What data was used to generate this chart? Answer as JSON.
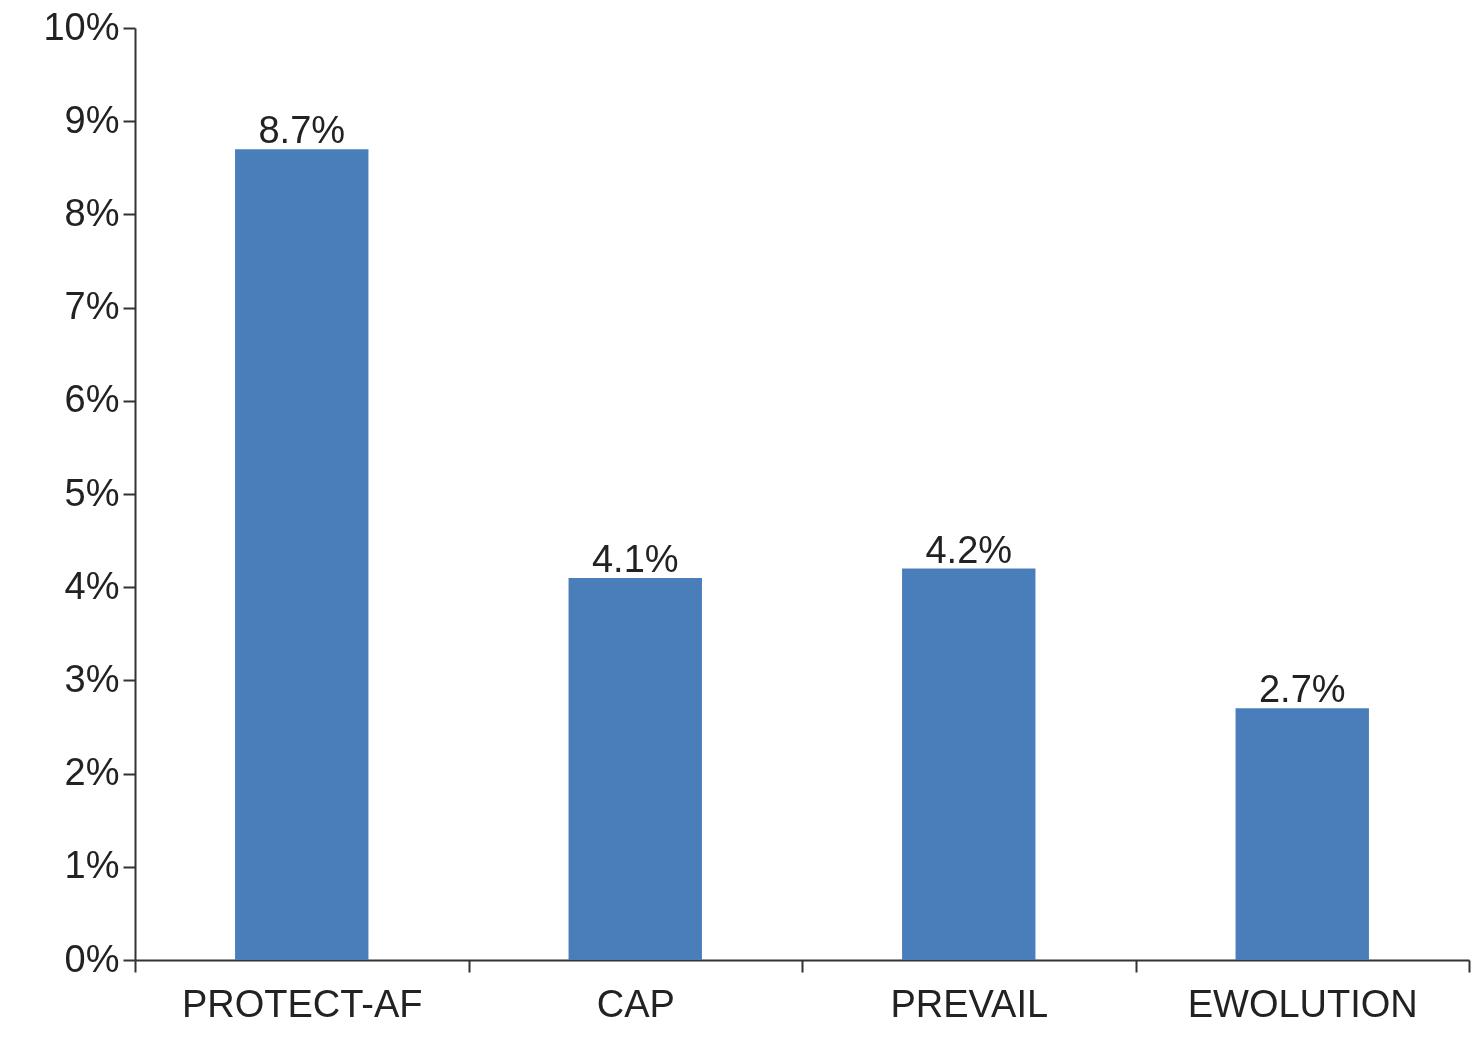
{
  "chart_data": {
    "type": "bar",
    "categories": [
      "PROTECT-AF",
      "CAP",
      "PREVAIL",
      "EWOLUTION"
    ],
    "values": [
      8.7,
      4.1,
      4.2,
      2.7
    ],
    "value_labels": [
      "8.7%",
      "4.1%",
      "4.2%",
      "2.7%"
    ],
    "color": "#4a7ebb",
    "ylim": [
      0,
      10
    ],
    "yticks": [
      {
        "value": 0,
        "label": "0%"
      },
      {
        "value": 1,
        "label": "1%"
      },
      {
        "value": 2,
        "label": "2%"
      },
      {
        "value": 3,
        "label": "3%"
      },
      {
        "value": 4,
        "label": "4%"
      },
      {
        "value": 5,
        "label": "5%"
      },
      {
        "value": 6,
        "label": "6%"
      },
      {
        "value": 7,
        "label": "7%"
      },
      {
        "value": 8,
        "label": "8%"
      },
      {
        "value": 9,
        "label": "9%"
      },
      {
        "value": 10,
        "label": "10%"
      }
    ],
    "grid": false
  }
}
